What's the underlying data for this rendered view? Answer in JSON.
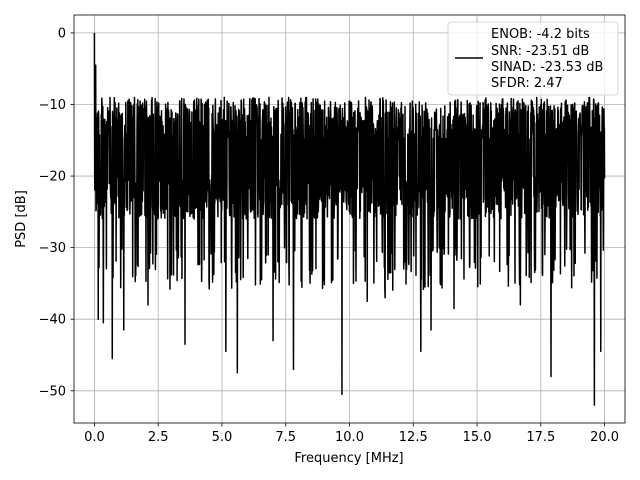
{
  "chart_data": {
    "type": "line",
    "title": "",
    "xlabel": "Frequency [MHz]",
    "ylabel": "PSD [dB]",
    "xlim": [
      -0.8,
      20.8
    ],
    "ylim": [
      -54.5,
      2.5
    ],
    "xticks": [
      0.0,
      2.5,
      5.0,
      7.5,
      10.0,
      12.5,
      15.0,
      17.5,
      20.0
    ],
    "xtick_labels": [
      "0.0",
      "2.5",
      "5.0",
      "7.5",
      "10.0",
      "12.5",
      "15.0",
      "17.5",
      "20.0"
    ],
    "yticks": [
      0,
      -10,
      -20,
      -30,
      -40,
      -50
    ],
    "ytick_labels": [
      "0",
      "−10",
      "−20",
      "−30",
      "−40",
      "−50"
    ],
    "grid": true,
    "legend_position": "top-right",
    "line_color": "#000000",
    "legend": {
      "lines": [
        "ENOB: -4.2 bits",
        "SNR: -23.51 dB",
        "SINAD: -23.53 dB",
        "SFDR: 2.47"
      ]
    },
    "x_range": [
      0.0,
      20.0
    ],
    "num_points": 2000,
    "noise_band": {
      "upper": -9,
      "lower": -28
    },
    "peak_points": [
      {
        "x": 0.0,
        "y": 0.0
      },
      {
        "x": 0.05,
        "y": -4.5
      }
    ],
    "dip_points": [
      {
        "x": 0.15,
        "y": -40.0
      },
      {
        "x": 0.35,
        "y": -40.5
      },
      {
        "x": 0.7,
        "y": -45.5
      },
      {
        "x": 1.15,
        "y": -41.5
      },
      {
        "x": 2.1,
        "y": -38.0
      },
      {
        "x": 3.55,
        "y": -43.5
      },
      {
        "x": 5.15,
        "y": -44.5
      },
      {
        "x": 5.6,
        "y": -47.5
      },
      {
        "x": 7.0,
        "y": -43.0
      },
      {
        "x": 7.8,
        "y": -47.0
      },
      {
        "x": 9.7,
        "y": -50.5
      },
      {
        "x": 10.7,
        "y": -37.5
      },
      {
        "x": 11.4,
        "y": -37.0
      },
      {
        "x": 12.8,
        "y": -44.5
      },
      {
        "x": 13.2,
        "y": -41.5
      },
      {
        "x": 14.1,
        "y": -38.5
      },
      {
        "x": 16.7,
        "y": -38.0
      },
      {
        "x": 17.9,
        "y": -48.0
      },
      {
        "x": 19.6,
        "y": -52.0
      },
      {
        "x": 19.85,
        "y": -44.5
      }
    ]
  }
}
